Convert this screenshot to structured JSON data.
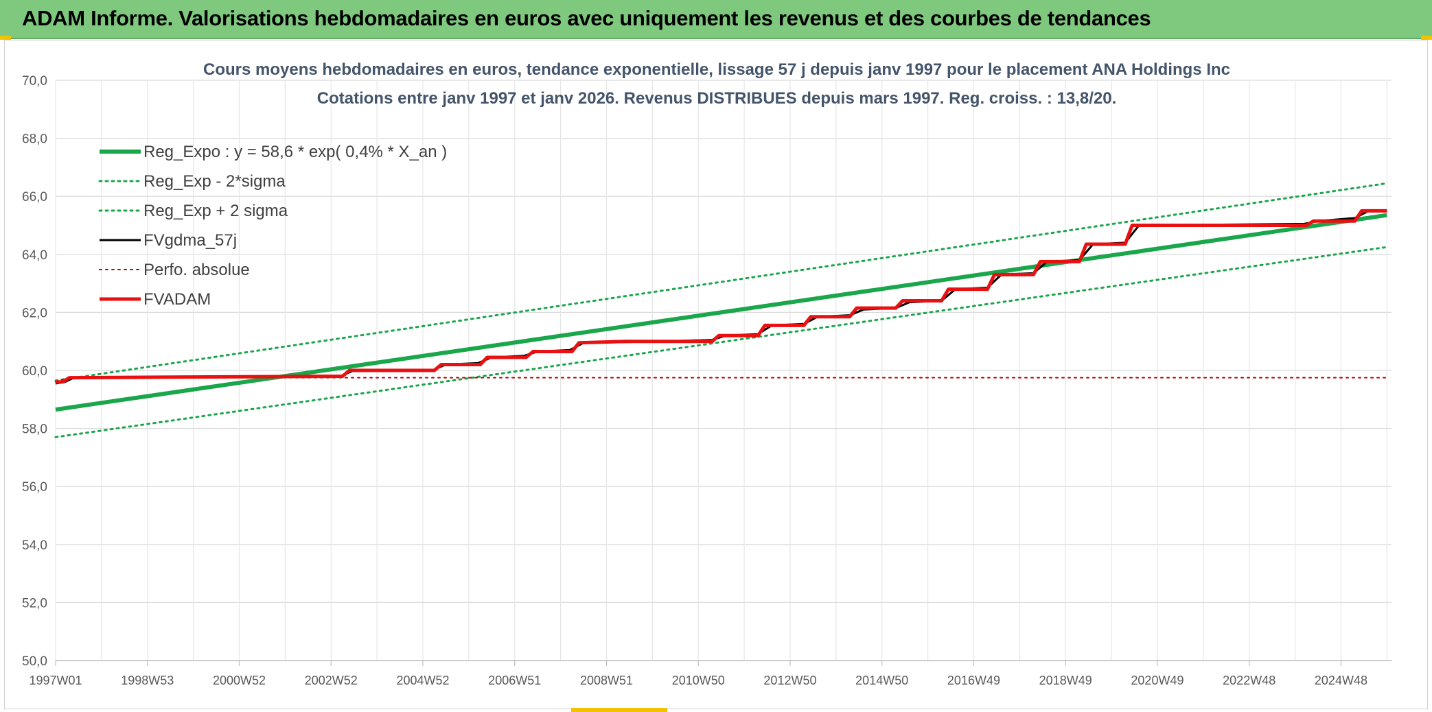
{
  "header": {
    "title": "ADAM Informe. Valorisations hebdomadaires en euros avec uniquement les revenus et des courbes de tendances"
  },
  "chart_data": {
    "type": "line",
    "title": "Cours moyens hebdomadaires en euros, tendance exponentielle, lissage 57 j depuis janv 1997 pour le placement ANA Holdings Inc",
    "subtitle": "Cotations entre janv 1997 et janv 2026. Revenus DISTRIBUES depuis mars 1997. Reg. croiss. : 13,8/20.",
    "xlabel": "",
    "ylabel": "",
    "xlim": [
      1997.0,
      2026.1
    ],
    "ylim": [
      50,
      70
    ],
    "y_ticks": [
      "50,0",
      "52,0",
      "54,0",
      "56,0",
      "58,0",
      "60,0",
      "62,0",
      "64,0",
      "66,0",
      "68,0",
      "70,0"
    ],
    "x_ticks": [
      {
        "label": "1997W01",
        "x": 1997.0
      },
      {
        "label": "1998W53",
        "x": 1999.0
      },
      {
        "label": "2000W52",
        "x": 2001.0
      },
      {
        "label": "2002W52",
        "x": 2003.0
      },
      {
        "label": "2004W52",
        "x": 2005.0
      },
      {
        "label": "2006W51",
        "x": 2007.0
      },
      {
        "label": "2008W51",
        "x": 2009.0
      },
      {
        "label": "2010W50",
        "x": 2011.0
      },
      {
        "label": "2012W50",
        "x": 2013.0
      },
      {
        "label": "2014W50",
        "x": 2015.0
      },
      {
        "label": "2016W49",
        "x": 2017.0
      },
      {
        "label": "2018W49",
        "x": 2019.0
      },
      {
        "label": "2020W49",
        "x": 2021.0
      },
      {
        "label": "2022W48",
        "x": 2023.0
      },
      {
        "label": "2024W48",
        "x": 2025.0
      }
    ],
    "grid": true,
    "legend_position": "top-left",
    "series": [
      {
        "name": "Reg_Expo : y = 58,6 * exp( 0,4% *  X_an )",
        "color": "#1aa64b",
        "style": "solid",
        "width": 6,
        "x": [
          1997.0,
          2026.0
        ],
        "y": [
          58.65,
          65.35
        ]
      },
      {
        "name": "Reg_Exp - 2*sigma",
        "color": "#1aa64b",
        "style": "dotted",
        "width": 3,
        "x": [
          1997.0,
          2026.0
        ],
        "y": [
          57.7,
          64.25
        ]
      },
      {
        "name": "Reg_Exp + 2 sigma",
        "color": "#1aa64b",
        "style": "dotted",
        "width": 3,
        "x": [
          1997.0,
          2026.0
        ],
        "y": [
          59.65,
          66.45
        ]
      },
      {
        "name": "FVgdma_57j",
        "color": "#000000",
        "style": "solid",
        "width": 3,
        "x": [
          1997.0,
          1997.2,
          1997.4,
          2003.2,
          2003.5,
          2005.2,
          2005.5,
          2006.2,
          2006.5,
          2007.2,
          2007.5,
          2008.2,
          2008.5,
          2010.2,
          2011.3,
          2011.6,
          2012.3,
          2012.6,
          2013.3,
          2013.6,
          2014.3,
          2014.6,
          2015.3,
          2015.6,
          2016.3,
          2016.6,
          2017.3,
          2017.6,
          2018.3,
          2018.6,
          2019.3,
          2019.6,
          2020.3,
          2020.6,
          2024.2,
          2024.5,
          2025.3,
          2025.6,
          2026.0
        ],
        "y": [
          59.55,
          59.6,
          59.75,
          59.8,
          60.0,
          60.0,
          60.2,
          60.25,
          60.45,
          60.5,
          60.65,
          60.7,
          60.95,
          61.0,
          61.05,
          61.2,
          61.25,
          61.55,
          61.6,
          61.85,
          61.9,
          62.1,
          62.15,
          62.35,
          62.4,
          62.8,
          62.85,
          63.3,
          63.35,
          63.75,
          63.8,
          64.35,
          64.4,
          65.0,
          65.05,
          65.15,
          65.25,
          65.5,
          65.5
        ]
      },
      {
        "name": "Perfo. absolue",
        "color": "#c00000",
        "style": "dotted",
        "width": 2,
        "x": [
          1997.0,
          1997.3,
          2026.0
        ],
        "y": [
          59.6,
          59.75,
          59.75
        ]
      },
      {
        "name": "FVADAM",
        "color": "#e81010",
        "style": "solid",
        "width": 5,
        "x": [
          1997.0,
          1997.15,
          1997.3,
          2003.25,
          2003.4,
          2005.25,
          2005.4,
          2006.25,
          2006.4,
          2007.25,
          2007.4,
          2008.25,
          2008.4,
          2009.4,
          2011.3,
          2011.45,
          2012.3,
          2012.45,
          2013.3,
          2013.45,
          2014.3,
          2014.45,
          2015.3,
          2015.45,
          2016.3,
          2016.45,
          2017.3,
          2017.45,
          2018.3,
          2018.45,
          2019.3,
          2019.45,
          2020.3,
          2020.45,
          2024.25,
          2024.4,
          2025.3,
          2025.45,
          2026.0
        ],
        "y": [
          59.6,
          59.6,
          59.75,
          59.8,
          60.0,
          60.0,
          60.2,
          60.2,
          60.45,
          60.45,
          60.65,
          60.65,
          60.95,
          61.0,
          61.0,
          61.2,
          61.2,
          61.55,
          61.55,
          61.85,
          61.85,
          62.15,
          62.15,
          62.4,
          62.4,
          62.8,
          62.8,
          63.3,
          63.3,
          63.75,
          63.75,
          64.35,
          64.35,
          65.0,
          65.0,
          65.15,
          65.15,
          65.5,
          65.5
        ]
      }
    ]
  }
}
